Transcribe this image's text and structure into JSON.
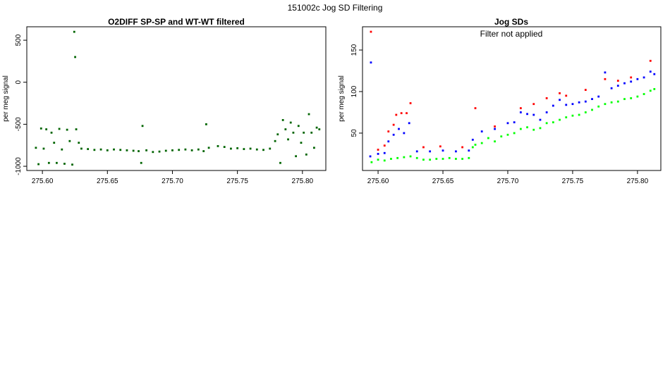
{
  "figure_title": "151002c   Jog SD Filtering",
  "colors": {
    "dark_green": "#006400",
    "bright_green": "#00ff00",
    "blue": "#0000ff",
    "red": "#ff0000",
    "axis": "#000000"
  },
  "chart_data": [
    {
      "type": "scatter",
      "title": "O2DIFF SP-SP and WT-WT filtered",
      "xlabel": "",
      "ylabel": "per meg signal",
      "xlim": [
        275.588,
        275.818
      ],
      "ylim": [
        -1050,
        660
      ],
      "x_ticks": [
        275.6,
        275.65,
        275.7,
        275.75,
        275.8
      ],
      "x_tick_labels": [
        "275.60",
        "275.65",
        "275.70",
        "275.75",
        "275.80"
      ],
      "y_ticks": [
        -1000,
        -500,
        0,
        500
      ],
      "y_tick_labels": [
        "-1000",
        "-500",
        "0",
        "500"
      ],
      "grid": false,
      "series": [
        {
          "color": "dark_green",
          "points": [
            [
              275.595,
              -780
            ],
            [
              275.597,
              -975
            ],
            [
              275.599,
              -550
            ],
            [
              275.601,
              -790
            ],
            [
              275.603,
              -560
            ],
            [
              275.605,
              -960
            ],
            [
              275.607,
              -600
            ],
            [
              275.609,
              -720
            ],
            [
              275.611,
              -960
            ],
            [
              275.613,
              -555
            ],
            [
              275.615,
              -800
            ],
            [
              275.617,
              -970
            ],
            [
              275.619,
              -565
            ],
            [
              275.621,
              -700
            ],
            [
              275.623,
              -980
            ],
            [
              275.6245,
              600
            ],
            [
              275.6252,
              300
            ],
            [
              275.626,
              -560
            ],
            [
              275.628,
              -720
            ],
            [
              275.63,
              -790
            ],
            [
              275.635,
              -795
            ],
            [
              275.64,
              -805
            ],
            [
              275.645,
              -800
            ],
            [
              275.65,
              -810
            ],
            [
              275.655,
              -800
            ],
            [
              275.66,
              -805
            ],
            [
              275.665,
              -810
            ],
            [
              275.67,
              -815
            ],
            [
              275.674,
              -820
            ],
            [
              275.676,
              -960
            ],
            [
              275.677,
              -520
            ],
            [
              275.68,
              -810
            ],
            [
              275.685,
              -830
            ],
            [
              275.69,
              -825
            ],
            [
              275.695,
              -815
            ],
            [
              275.7,
              -810
            ],
            [
              275.705,
              -805
            ],
            [
              275.71,
              -800
            ],
            [
              275.715,
              -810
            ],
            [
              275.72,
              -800
            ],
            [
              275.724,
              -820
            ],
            [
              275.726,
              -500
            ],
            [
              275.728,
              -780
            ],
            [
              275.735,
              -760
            ],
            [
              275.74,
              -770
            ],
            [
              275.745,
              -790
            ],
            [
              275.75,
              -785
            ],
            [
              275.755,
              -795
            ],
            [
              275.76,
              -790
            ],
            [
              275.765,
              -800
            ],
            [
              275.77,
              -805
            ],
            [
              275.775,
              -790
            ],
            [
              275.779,
              -700
            ],
            [
              275.781,
              -620
            ],
            [
              275.783,
              -960
            ],
            [
              275.785,
              -450
            ],
            [
              275.787,
              -560
            ],
            [
              275.789,
              -680
            ],
            [
              275.791,
              -480
            ],
            [
              275.793,
              -600
            ],
            [
              275.795,
              -880
            ],
            [
              275.797,
              -520
            ],
            [
              275.799,
              -720
            ],
            [
              275.801,
              -600
            ],
            [
              275.803,
              -860
            ],
            [
              275.805,
              -380
            ],
            [
              275.807,
              -600
            ],
            [
              275.809,
              -780
            ],
            [
              275.811,
              -540
            ],
            [
              275.813,
              -560
            ]
          ]
        }
      ]
    },
    {
      "type": "scatter",
      "title": "Jog SDs",
      "annotation": "Filter not applied",
      "xlabel": "",
      "ylabel": "per meg signal",
      "xlim": [
        275.588,
        275.818
      ],
      "ylim": [
        5,
        178
      ],
      "x_ticks": [
        275.6,
        275.65,
        275.7,
        275.75,
        275.8
      ],
      "x_tick_labels": [
        "275.60",
        "275.65",
        "275.70",
        "275.75",
        "275.80"
      ],
      "y_ticks": [
        50,
        100,
        150
      ],
      "y_tick_labels": [
        "50",
        "100",
        "150"
      ],
      "grid": false,
      "series": [
        {
          "color": "bright_green",
          "points": [
            [
              275.595,
              15
            ],
            [
              275.6,
              18
            ],
            [
              275.605,
              17
            ],
            [
              275.61,
              19
            ],
            [
              275.615,
              20
            ],
            [
              275.62,
              21
            ],
            [
              275.625,
              22
            ],
            [
              275.63,
              20
            ],
            [
              275.635,
              18
            ],
            [
              275.64,
              18
            ],
            [
              275.645,
              19
            ],
            [
              275.65,
              19
            ],
            [
              275.655,
              20
            ],
            [
              275.66,
              19
            ],
            [
              275.665,
              19
            ],
            [
              275.67,
              20
            ],
            [
              275.673,
              33
            ],
            [
              275.675,
              36
            ],
            [
              275.68,
              38
            ],
            [
              275.685,
              44
            ],
            [
              275.69,
              40
            ],
            [
              275.695,
              46
            ],
            [
              275.7,
              48
            ],
            [
              275.705,
              50
            ],
            [
              275.71,
              55
            ],
            [
              275.715,
              57
            ],
            [
              275.72,
              54
            ],
            [
              275.725,
              56
            ],
            [
              275.73,
              62
            ],
            [
              275.735,
              63
            ],
            [
              275.74,
              66
            ],
            [
              275.745,
              69
            ],
            [
              275.75,
              71
            ],
            [
              275.755,
              72
            ],
            [
              275.76,
              75
            ],
            [
              275.765,
              78
            ],
            [
              275.77,
              82
            ],
            [
              275.775,
              85
            ],
            [
              275.78,
              87
            ],
            [
              275.785,
              88
            ],
            [
              275.79,
              91
            ],
            [
              275.795,
              92
            ],
            [
              275.8,
              94
            ],
            [
              275.805,
              97
            ],
            [
              275.81,
              101
            ],
            [
              275.813,
              103
            ]
          ]
        },
        {
          "color": "blue",
          "points": [
            [
              275.594,
              22
            ],
            [
              275.5945,
              135
            ],
            [
              275.6,
              25
            ],
            [
              275.605,
              26
            ],
            [
              275.608,
              40
            ],
            [
              275.612,
              48
            ],
            [
              275.616,
              55
            ],
            [
              275.62,
              50
            ],
            [
              275.624,
              62
            ],
            [
              275.63,
              28
            ],
            [
              275.64,
              28
            ],
            [
              275.65,
              29
            ],
            [
              275.66,
              28
            ],
            [
              275.67,
              29
            ],
            [
              275.673,
              42
            ],
            [
              275.68,
              52
            ],
            [
              275.69,
              55
            ],
            [
              275.7,
              62
            ],
            [
              275.705,
              63
            ],
            [
              275.71,
              75
            ],
            [
              275.715,
              73
            ],
            [
              275.72,
              72
            ],
            [
              275.725,
              66
            ],
            [
              275.73,
              75
            ],
            [
              275.735,
              83
            ],
            [
              275.74,
              90
            ],
            [
              275.745,
              84
            ],
            [
              275.75,
              85
            ],
            [
              275.755,
              87
            ],
            [
              275.76,
              88
            ],
            [
              275.765,
              91
            ],
            [
              275.77,
              94
            ],
            [
              275.775,
              123
            ],
            [
              275.78,
              104
            ],
            [
              275.785,
              107
            ],
            [
              275.79,
              110
            ],
            [
              275.795,
              112
            ],
            [
              275.8,
              115
            ],
            [
              275.805,
              117
            ],
            [
              275.81,
              124
            ],
            [
              275.813,
              121
            ]
          ]
        },
        {
          "color": "red",
          "points": [
            [
              275.5945,
              172
            ],
            [
              275.6,
              30
            ],
            [
              275.605,
              35
            ],
            [
              275.608,
              52
            ],
            [
              275.612,
              60
            ],
            [
              275.614,
              72
            ],
            [
              275.618,
              74
            ],
            [
              275.622,
              74
            ],
            [
              275.625,
              86
            ],
            [
              275.635,
              33
            ],
            [
              275.648,
              34
            ],
            [
              275.665,
              33
            ],
            [
              275.675,
              80
            ],
            [
              275.69,
              58
            ],
            [
              275.71,
              80
            ],
            [
              275.72,
              85
            ],
            [
              275.73,
              92
            ],
            [
              275.74,
              98
            ],
            [
              275.745,
              95
            ],
            [
              275.76,
              102
            ],
            [
              275.775,
              115
            ],
            [
              275.785,
              113
            ],
            [
              275.795,
              117
            ],
            [
              275.81,
              137
            ]
          ]
        }
      ]
    }
  ]
}
